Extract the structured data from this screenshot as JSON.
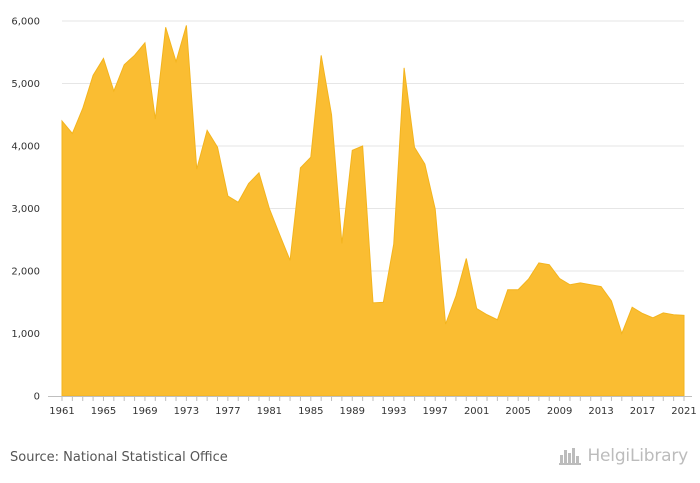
{
  "chart_data": {
    "type": "area",
    "color": "#fabd32",
    "title": "",
    "xlabel": "",
    "ylabel": "",
    "x": [
      1961,
      1962,
      1963,
      1964,
      1965,
      1966,
      1967,
      1968,
      1969,
      1970,
      1971,
      1972,
      1973,
      1974,
      1975,
      1976,
      1977,
      1978,
      1979,
      1980,
      1981,
      1982,
      1983,
      1984,
      1985,
      1986,
      1987,
      1988,
      1989,
      1990,
      1991,
      1992,
      1993,
      1994,
      1995,
      1996,
      1997,
      1998,
      1999,
      2000,
      2001,
      2002,
      2003,
      2004,
      2005,
      2006,
      2007,
      2008,
      2009,
      2010,
      2011,
      2012,
      2013,
      2014,
      2015,
      2016,
      2017,
      2018,
      2019,
      2020,
      2021
    ],
    "values": [
      4400,
      4200,
      4600,
      5130,
      5400,
      4880,
      5300,
      5450,
      5650,
      4430,
      5900,
      5350,
      5930,
      3630,
      4250,
      3980,
      3200,
      3100,
      3400,
      3570,
      3000,
      2580,
      2170,
      3650,
      3820,
      5450,
      4500,
      2440,
      3930,
      4000,
      1490,
      1500,
      2430,
      5250,
      3980,
      3710,
      2990,
      1150,
      1600,
      2200,
      1400,
      1300,
      1220,
      1700,
      1700,
      1870,
      2130,
      2100,
      1880,
      1780,
      1810,
      1780,
      1750,
      1520,
      1000,
      1420,
      1320,
      1250,
      1330,
      1300,
      1290
    ],
    "xlim": [
      1961,
      2021
    ],
    "ylim": [
      0,
      6000
    ],
    "x_ticks": [
      "1961",
      "1965",
      "1969",
      "1973",
      "1977",
      "1981",
      "1985",
      "1989",
      "1993",
      "1997",
      "2001",
      "2005",
      "2009",
      "2013",
      "2017",
      "2021"
    ],
    "y_ticks": [
      "0",
      "1,000",
      "2,000",
      "3,000",
      "4,000",
      "5,000",
      "6,000"
    ],
    "grid": true,
    "legend": "none"
  },
  "footer": {
    "source": "Source: National Statistical Office",
    "logo_text": "HelgiLibrary"
  }
}
